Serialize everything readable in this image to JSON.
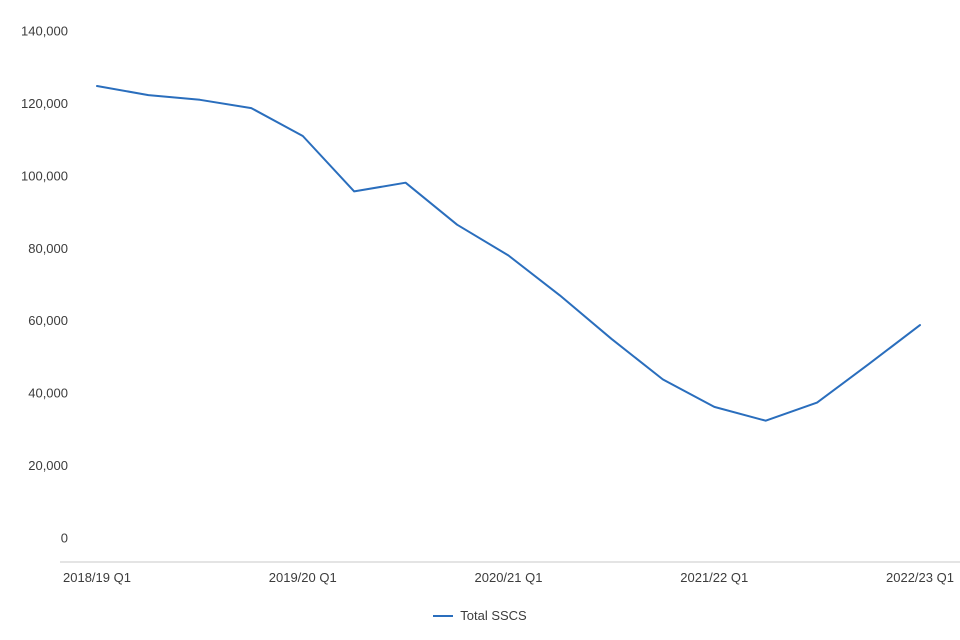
{
  "chart_data": {
    "type": "line",
    "title": "",
    "legend": "Total SSCS",
    "legend_position": "bottom",
    "grid": false,
    "line_color": "#2a6ebd",
    "axis_color": "#c9c9c9",
    "text_color": "#3c3c3c",
    "ylim": [
      0,
      140000
    ],
    "y_ticks": [
      0,
      20000,
      40000,
      60000,
      80000,
      100000,
      120000,
      140000
    ],
    "y_tick_labels": [
      "0",
      "20,000",
      "40,000",
      "60,000",
      "80,000",
      "100,000",
      "120,000",
      "140,000"
    ],
    "x_tick_labels": [
      "2018/19 Q1",
      "2019/20 Q1",
      "2020/21 Q1",
      "2021/22 Q1",
      "2022/23 Q1"
    ],
    "x_tick_indices": [
      0,
      4,
      8,
      12,
      16
    ],
    "series": [
      {
        "name": "Total SSCS",
        "values": [
          124800,
          122300,
          121000,
          118700,
          111000,
          95700,
          98100,
          86500,
          78000,
          67000,
          55000,
          43800,
          36200,
          32400,
          37400,
          48000,
          58800
        ]
      }
    ]
  }
}
